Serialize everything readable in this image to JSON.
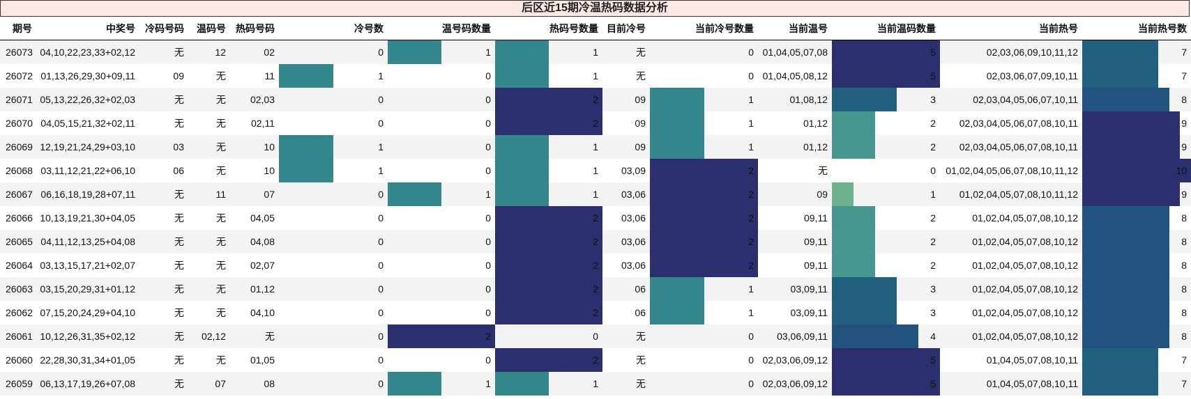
{
  "title": "后区近15期冷温热码数据分析",
  "chart_data": {
    "type": "table",
    "columns": [
      {
        "key": "issue",
        "label": "期号",
        "align": "left",
        "kind": "text"
      },
      {
        "key": "prize",
        "label": "中奖号",
        "align": "right",
        "kind": "text"
      },
      {
        "key": "cold",
        "label": "冷码号码",
        "align": "right",
        "kind": "text"
      },
      {
        "key": "warm",
        "label": "温码号",
        "align": "right",
        "kind": "text"
      },
      {
        "key": "hot",
        "label": "热码号码",
        "align": "right",
        "kind": "text"
      },
      {
        "key": "cold_n",
        "label": "冷号数",
        "align": "right",
        "kind": "bar",
        "max": 2
      },
      {
        "key": "warm_n",
        "label": "温号码数量",
        "align": "right",
        "kind": "bar",
        "max": 2
      },
      {
        "key": "hot_n",
        "label": "热码号数量",
        "align": "right",
        "kind": "bar",
        "max": 2
      },
      {
        "key": "cur_cold",
        "label": "目前冷号",
        "align": "right",
        "kind": "text"
      },
      {
        "key": "cur_cold_n",
        "label": "当前冷号数量",
        "align": "right",
        "kind": "bar",
        "max": 2
      },
      {
        "key": "cur_warm",
        "label": "当前温号",
        "align": "right",
        "kind": "text"
      },
      {
        "key": "cur_warm_n",
        "label": "当前温码数量",
        "align": "right",
        "kind": "bar",
        "max": 5
      },
      {
        "key": "cur_hot",
        "label": "当前热号",
        "align": "right",
        "kind": "text"
      },
      {
        "key": "cur_hot_n",
        "label": "当前热号数",
        "align": "right",
        "kind": "bar",
        "max": 10
      }
    ],
    "rows": [
      {
        "issue": "26073",
        "prize": "04,10,22,23,33+02,12",
        "cold": "无",
        "warm": "12",
        "hot": "02",
        "cold_n": 0,
        "warm_n": 1,
        "hot_n": 1,
        "cur_cold": "无",
        "cur_cold_n": 0,
        "cur_warm": "01,04,05,07,08",
        "cur_warm_n": 5,
        "cur_hot": "02,03,06,09,10,11,12",
        "cur_hot_n": 7
      },
      {
        "issue": "26072",
        "prize": "01,13,26,29,30+09,11",
        "cold": "09",
        "warm": "无",
        "hot": "11",
        "cold_n": 1,
        "warm_n": 0,
        "hot_n": 1,
        "cur_cold": "无",
        "cur_cold_n": 0,
        "cur_warm": "01,04,05,08,12",
        "cur_warm_n": 5,
        "cur_hot": "02,03,06,07,09,10,11",
        "cur_hot_n": 7
      },
      {
        "issue": "26071",
        "prize": "05,13,22,26,32+02,03",
        "cold": "无",
        "warm": "无",
        "hot": "02,03",
        "cold_n": 0,
        "warm_n": 0,
        "hot_n": 2,
        "cur_cold": "09",
        "cur_cold_n": 1,
        "cur_warm": "01,08,12",
        "cur_warm_n": 3,
        "cur_hot": "02,03,04,05,06,07,10,11",
        "cur_hot_n": 8
      },
      {
        "issue": "26070",
        "prize": "04,05,15,21,32+02,11",
        "cold": "无",
        "warm": "无",
        "hot": "02,11",
        "cold_n": 0,
        "warm_n": 0,
        "hot_n": 2,
        "cur_cold": "09",
        "cur_cold_n": 1,
        "cur_warm": "01,12",
        "cur_warm_n": 2,
        "cur_hot": "02,03,04,05,06,07,08,10,11",
        "cur_hot_n": 9
      },
      {
        "issue": "26069",
        "prize": "12,19,21,24,29+03,10",
        "cold": "03",
        "warm": "无",
        "hot": "10",
        "cold_n": 1,
        "warm_n": 0,
        "hot_n": 1,
        "cur_cold": "09",
        "cur_cold_n": 1,
        "cur_warm": "01,12",
        "cur_warm_n": 2,
        "cur_hot": "02,03,04,05,06,07,08,10,11",
        "cur_hot_n": 9
      },
      {
        "issue": "26068",
        "prize": "03,11,12,21,22+06,10",
        "cold": "06",
        "warm": "无",
        "hot": "10",
        "cold_n": 1,
        "warm_n": 0,
        "hot_n": 1,
        "cur_cold": "03,09",
        "cur_cold_n": 2,
        "cur_warm": "无",
        "cur_warm_n": 0,
        "cur_hot": "01,02,04,05,06,07,08,10,11,12",
        "cur_hot_n": 10
      },
      {
        "issue": "26067",
        "prize": "06,16,18,19,28+07,11",
        "cold": "无",
        "warm": "11",
        "hot": "07",
        "cold_n": 0,
        "warm_n": 1,
        "hot_n": 1,
        "cur_cold": "03,06",
        "cur_cold_n": 2,
        "cur_warm": "09",
        "cur_warm_n": 1,
        "cur_hot": "01,02,04,05,07,08,10,11,12",
        "cur_hot_n": 9
      },
      {
        "issue": "26066",
        "prize": "10,13,19,21,30+04,05",
        "cold": "无",
        "warm": "无",
        "hot": "04,05",
        "cold_n": 0,
        "warm_n": 0,
        "hot_n": 2,
        "cur_cold": "03,06",
        "cur_cold_n": 2,
        "cur_warm": "09,11",
        "cur_warm_n": 2,
        "cur_hot": "01,02,04,05,07,08,10,12",
        "cur_hot_n": 8
      },
      {
        "issue": "26065",
        "prize": "04,11,12,13,25+04,08",
        "cold": "无",
        "warm": "无",
        "hot": "04,08",
        "cold_n": 0,
        "warm_n": 0,
        "hot_n": 2,
        "cur_cold": "03,06",
        "cur_cold_n": 2,
        "cur_warm": "09,11",
        "cur_warm_n": 2,
        "cur_hot": "01,02,04,05,07,08,10,12",
        "cur_hot_n": 8
      },
      {
        "issue": "26064",
        "prize": "03,13,15,17,21+02,07",
        "cold": "无",
        "warm": "无",
        "hot": "02,07",
        "cold_n": 0,
        "warm_n": 0,
        "hot_n": 2,
        "cur_cold": "03,06",
        "cur_cold_n": 2,
        "cur_warm": "09,11",
        "cur_warm_n": 2,
        "cur_hot": "01,02,04,05,07,08,10,12",
        "cur_hot_n": 8
      },
      {
        "issue": "26063",
        "prize": "03,15,20,29,31+01,12",
        "cold": "无",
        "warm": "无",
        "hot": "01,12",
        "cold_n": 0,
        "warm_n": 0,
        "hot_n": 2,
        "cur_cold": "06",
        "cur_cold_n": 1,
        "cur_warm": "03,09,11",
        "cur_warm_n": 3,
        "cur_hot": "01,02,04,05,07,08,10,12",
        "cur_hot_n": 8
      },
      {
        "issue": "26062",
        "prize": "07,15,20,24,29+04,10",
        "cold": "无",
        "warm": "无",
        "hot": "04,10",
        "cold_n": 0,
        "warm_n": 0,
        "hot_n": 2,
        "cur_cold": "06",
        "cur_cold_n": 1,
        "cur_warm": "03,09,11",
        "cur_warm_n": 3,
        "cur_hot": "01,02,04,05,07,08,10,12",
        "cur_hot_n": 8
      },
      {
        "issue": "26061",
        "prize": "10,12,26,31,35+02,12",
        "cold": "无",
        "warm": "02,12",
        "hot": "无",
        "cold_n": 0,
        "warm_n": 2,
        "hot_n": 0,
        "cur_cold": "无",
        "cur_cold_n": 0,
        "cur_warm": "03,06,09,11",
        "cur_warm_n": 4,
        "cur_hot": "01,02,04,05,07,08,10,12",
        "cur_hot_n": 8
      },
      {
        "issue": "26060",
        "prize": "22,28,30,31,34+01,05",
        "cold": "无",
        "warm": "无",
        "hot": "01,05",
        "cold_n": 0,
        "warm_n": 0,
        "hot_n": 2,
        "cur_cold": "无",
        "cur_cold_n": 0,
        "cur_warm": "02,03,06,09,12",
        "cur_warm_n": 5,
        "cur_hot": "01,04,05,07,08,10,11",
        "cur_hot_n": 7
      },
      {
        "issue": "26059",
        "prize": "06,13,17,19,26+07,08",
        "cold": "无",
        "warm": "07",
        "hot": "08",
        "cold_n": 0,
        "warm_n": 1,
        "hot_n": 1,
        "cur_cold": "无",
        "cur_cold_n": 0,
        "cur_warm": "02,03,06,09,12",
        "cur_warm_n": 5,
        "cur_hot": "01,04,05,07,08,10,11",
        "cur_hot_n": 7
      }
    ]
  },
  "colors": {
    "title_bg": "#fde8e4",
    "row_alt": "#f3f3f3",
    "bar_max": "#2c2f6e",
    "bar_mid": "#21617f",
    "bar_blue": "#20547f",
    "bar_teal": "#33868a",
    "bar_lightteal": "#46978f",
    "bar_green": "#6db08c"
  }
}
